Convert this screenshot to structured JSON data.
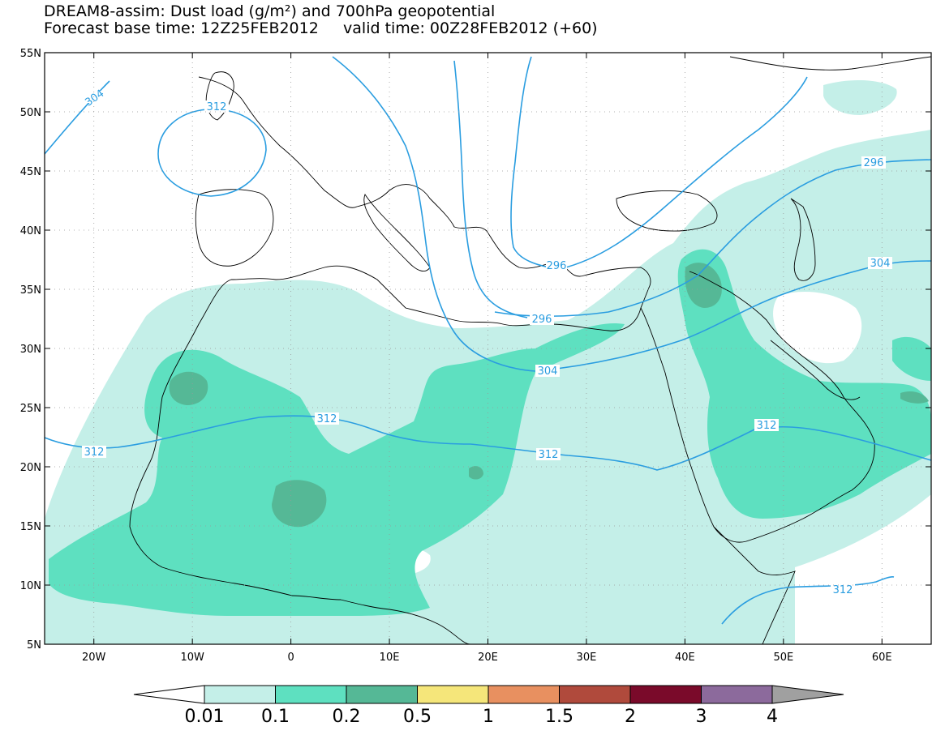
{
  "title": {
    "line1": "DREAM8-assim: Dust load (g/m²) and 700hPa geopotential",
    "line2": "Forecast base time: 12Z25FEB2012     valid time: 00Z28FEB2012 (+60)"
  },
  "map": {
    "lon_range": [
      -25,
      65
    ],
    "lat_range": [
      5,
      55
    ],
    "lat_labels": [
      "55N",
      "50N",
      "45N",
      "40N",
      "35N",
      "30N",
      "25N",
      "20N",
      "15N",
      "10N",
      "5N"
    ],
    "lon_labels": [
      "20W",
      "10W",
      "0",
      "10E",
      "20E",
      "30E",
      "40E",
      "50E",
      "60E"
    ]
  },
  "contour_labels": [
    "304",
    "312",
    "296",
    "296",
    "304",
    "296",
    "304",
    "312",
    "312",
    "312",
    "312"
  ],
  "colorbar": {
    "labels": [
      "0.01",
      "0.1",
      "0.2",
      "0.5",
      "1",
      "1.5",
      "2",
      "3",
      "4"
    ],
    "colors": [
      "#ffffff",
      "#c4efe8",
      "#5ee0c0",
      "#55b896",
      "#f5e67a",
      "#e89060",
      "#b04a3c",
      "#7a0a2a",
      "#8c6a9c",
      "#a0a0a0"
    ]
  }
}
